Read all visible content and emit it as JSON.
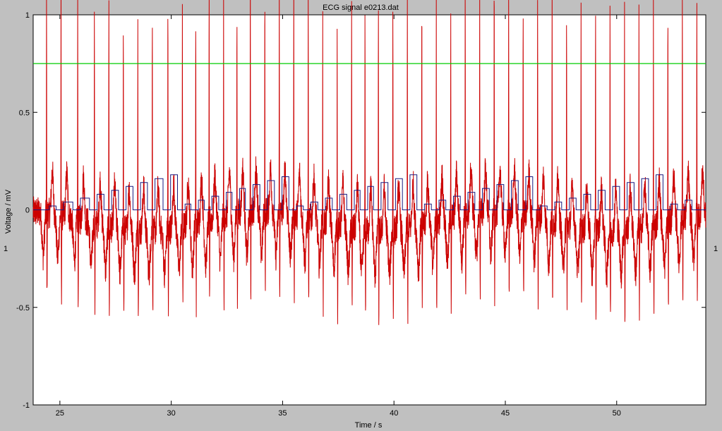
{
  "figure": {
    "background_color": "#c0c0c0",
    "axes_background": "#ffffff"
  },
  "chart_data": {
    "type": "line",
    "title": "ECG signal e0213.dat",
    "xlabel": "Time / s",
    "ylabel": "Voltage / mV",
    "xlim": [
      23.8,
      54.0
    ],
    "ylim": [
      -1.0,
      1.0
    ],
    "xticks": [
      25,
      30,
      35,
      40,
      45,
      50
    ],
    "yticks": [
      -1,
      -0.5,
      0,
      0.5,
      1
    ],
    "ytick_labels": [
      "-1",
      "-0.5",
      "0",
      "0.5",
      "1"
    ],
    "grid": false,
    "side_labels": {
      "left": "1",
      "right": "1"
    },
    "beat_times": [
      24.4,
      25.05,
      25.8,
      26.55,
      27.2,
      27.85,
      28.5,
      29.15,
      29.85,
      30.5,
      31.1,
      31.7,
      32.35,
      32.95,
      33.55,
      34.2,
      34.85,
      35.5,
      36.15,
      36.8,
      37.45,
      38.1,
      38.7,
      39.3,
      39.95,
      40.6,
      41.25,
      41.9,
      42.55,
      43.2,
      43.85,
      44.5,
      45.15,
      45.8,
      46.45,
      47.1,
      47.75,
      48.4,
      49.05,
      49.7,
      50.35,
      51.0,
      51.65,
      52.3,
      52.95,
      53.6
    ],
    "series": [
      {
        "name": "",
        "color": "#cc0000",
        "description": "ECG waveform with R peaks near 1.2 mV and baseline noise between about -0.5 and 0.3 mV"
      },
      {
        "name": "",
        "color": "#1a1a80",
        "description": "Step annotation signal between 0 and about 0.3 mV"
      },
      {
        "name": "",
        "color": "#00cc00",
        "constant": 0.75
      }
    ]
  }
}
